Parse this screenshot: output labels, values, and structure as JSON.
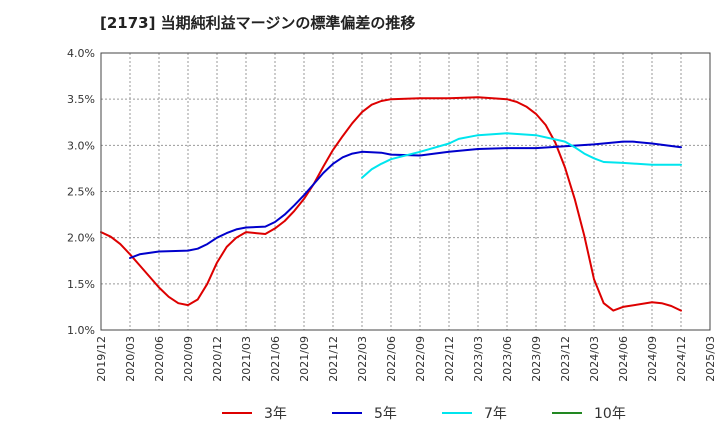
{
  "chart_data": {
    "type": "line",
    "title": "[2173]  当期純利益マージンの標準偏差の推移",
    "xlabel": "",
    "ylabel": "",
    "x": [
      "2019/12",
      "2020/03",
      "2020/06",
      "2020/09",
      "2020/12",
      "2021/03",
      "2021/06",
      "2021/09",
      "2021/12",
      "2022/03",
      "2022/06",
      "2022/09",
      "2022/12",
      "2023/03",
      "2023/06",
      "2023/09",
      "2023/12",
      "2024/03",
      "2024/06",
      "2024/09",
      "2024/12",
      "2025/03"
    ],
    "ylim": [
      1.0,
      4.0
    ],
    "yticks": [
      "1.0%",
      "1.5%",
      "2.0%",
      "2.5%",
      "3.0%",
      "3.5%",
      "4.0%"
    ],
    "grid": true,
    "legend_position": "bottom",
    "series": [
      {
        "name": "3年",
        "color": "#dd0000",
        "points": [
          [
            "2019/12",
            2.06
          ],
          [
            "2020/01",
            2.01
          ],
          [
            "2020/02",
            1.93
          ],
          [
            "2020/03",
            1.82
          ],
          [
            "2020/04",
            1.7
          ],
          [
            "2020/05",
            1.58
          ],
          [
            "2020/06",
            1.46
          ],
          [
            "2020/07",
            1.36
          ],
          [
            "2020/08",
            1.29
          ],
          [
            "2020/09",
            1.27
          ],
          [
            "2020/10",
            1.33
          ],
          [
            "2020/11",
            1.5
          ],
          [
            "2020/12",
            1.73
          ],
          [
            "2021/01",
            1.9
          ],
          [
            "2021/02",
            2.0
          ],
          [
            "2021/03",
            2.06
          ],
          [
            "2021/04",
            2.05
          ],
          [
            "2021/05",
            2.04
          ],
          [
            "2021/06",
            2.1
          ],
          [
            "2021/07",
            2.18
          ],
          [
            "2021/08",
            2.29
          ],
          [
            "2021/09",
            2.42
          ],
          [
            "2021/10",
            2.58
          ],
          [
            "2021/11",
            2.77
          ],
          [
            "2021/12",
            2.95
          ],
          [
            "2022/01",
            3.1
          ],
          [
            "2022/02",
            3.24
          ],
          [
            "2022/03",
            3.36
          ],
          [
            "2022/04",
            3.44
          ],
          [
            "2022/05",
            3.48
          ],
          [
            "2022/06",
            3.5
          ],
          [
            "2022/09",
            3.51
          ],
          [
            "2022/12",
            3.51
          ],
          [
            "2023/03",
            3.52
          ],
          [
            "2023/06",
            3.5
          ],
          [
            "2023/07",
            3.47
          ],
          [
            "2023/08",
            3.42
          ],
          [
            "2023/09",
            3.34
          ],
          [
            "2023/10",
            3.22
          ],
          [
            "2023/11",
            3.03
          ],
          [
            "2023/12",
            2.76
          ],
          [
            "2024/01",
            2.42
          ],
          [
            "2024/02",
            2.02
          ],
          [
            "2024/03",
            1.55
          ],
          [
            "2024/04",
            1.29
          ],
          [
            "2024/05",
            1.21
          ],
          [
            "2024/06",
            1.25
          ],
          [
            "2024/09",
            1.3
          ],
          [
            "2024/10",
            1.29
          ],
          [
            "2024/11",
            1.26
          ],
          [
            "2024/12",
            1.21
          ]
        ]
      },
      {
        "name": "5年",
        "color": "#0000cc",
        "points": [
          [
            "2020/03",
            1.78
          ],
          [
            "2020/04",
            1.82
          ],
          [
            "2020/06",
            1.85
          ],
          [
            "2020/09",
            1.86
          ],
          [
            "2020/10",
            1.88
          ],
          [
            "2020/11",
            1.93
          ],
          [
            "2020/12",
            2.0
          ],
          [
            "2021/01",
            2.05
          ],
          [
            "2021/02",
            2.09
          ],
          [
            "2021/03",
            2.11
          ],
          [
            "2021/05",
            2.12
          ],
          [
            "2021/06",
            2.17
          ],
          [
            "2021/07",
            2.25
          ],
          [
            "2021/08",
            2.35
          ],
          [
            "2021/09",
            2.46
          ],
          [
            "2021/10",
            2.58
          ],
          [
            "2021/11",
            2.7
          ],
          [
            "2021/12",
            2.8
          ],
          [
            "2022/01",
            2.87
          ],
          [
            "2022/02",
            2.91
          ],
          [
            "2022/03",
            2.93
          ],
          [
            "2022/05",
            2.92
          ],
          [
            "2022/06",
            2.9
          ],
          [
            "2022/09",
            2.89
          ],
          [
            "2022/12",
            2.93
          ],
          [
            "2023/03",
            2.96
          ],
          [
            "2023/06",
            2.97
          ],
          [
            "2023/09",
            2.97
          ],
          [
            "2023/12",
            2.99
          ],
          [
            "2024/03",
            3.01
          ],
          [
            "2024/06",
            3.04
          ],
          [
            "2024/07",
            3.04
          ],
          [
            "2024/09",
            3.02
          ],
          [
            "2024/12",
            2.98
          ]
        ]
      },
      {
        "name": "7年",
        "color": "#00e5ee",
        "points": [
          [
            "2022/03",
            2.65
          ],
          [
            "2022/04",
            2.74
          ],
          [
            "2022/05",
            2.8
          ],
          [
            "2022/06",
            2.85
          ],
          [
            "2022/09",
            2.93
          ],
          [
            "2022/12",
            3.02
          ],
          [
            "2023/01",
            3.07
          ],
          [
            "2023/03",
            3.11
          ],
          [
            "2023/06",
            3.13
          ],
          [
            "2023/09",
            3.11
          ],
          [
            "2023/12",
            3.04
          ],
          [
            "2024/01",
            2.98
          ],
          [
            "2024/02",
            2.91
          ],
          [
            "2024/03",
            2.86
          ],
          [
            "2024/04",
            2.82
          ],
          [
            "2024/06",
            2.81
          ],
          [
            "2024/09",
            2.79
          ],
          [
            "2024/12",
            2.79
          ]
        ]
      },
      {
        "name": "10年",
        "color": "#228822",
        "points": []
      }
    ]
  }
}
